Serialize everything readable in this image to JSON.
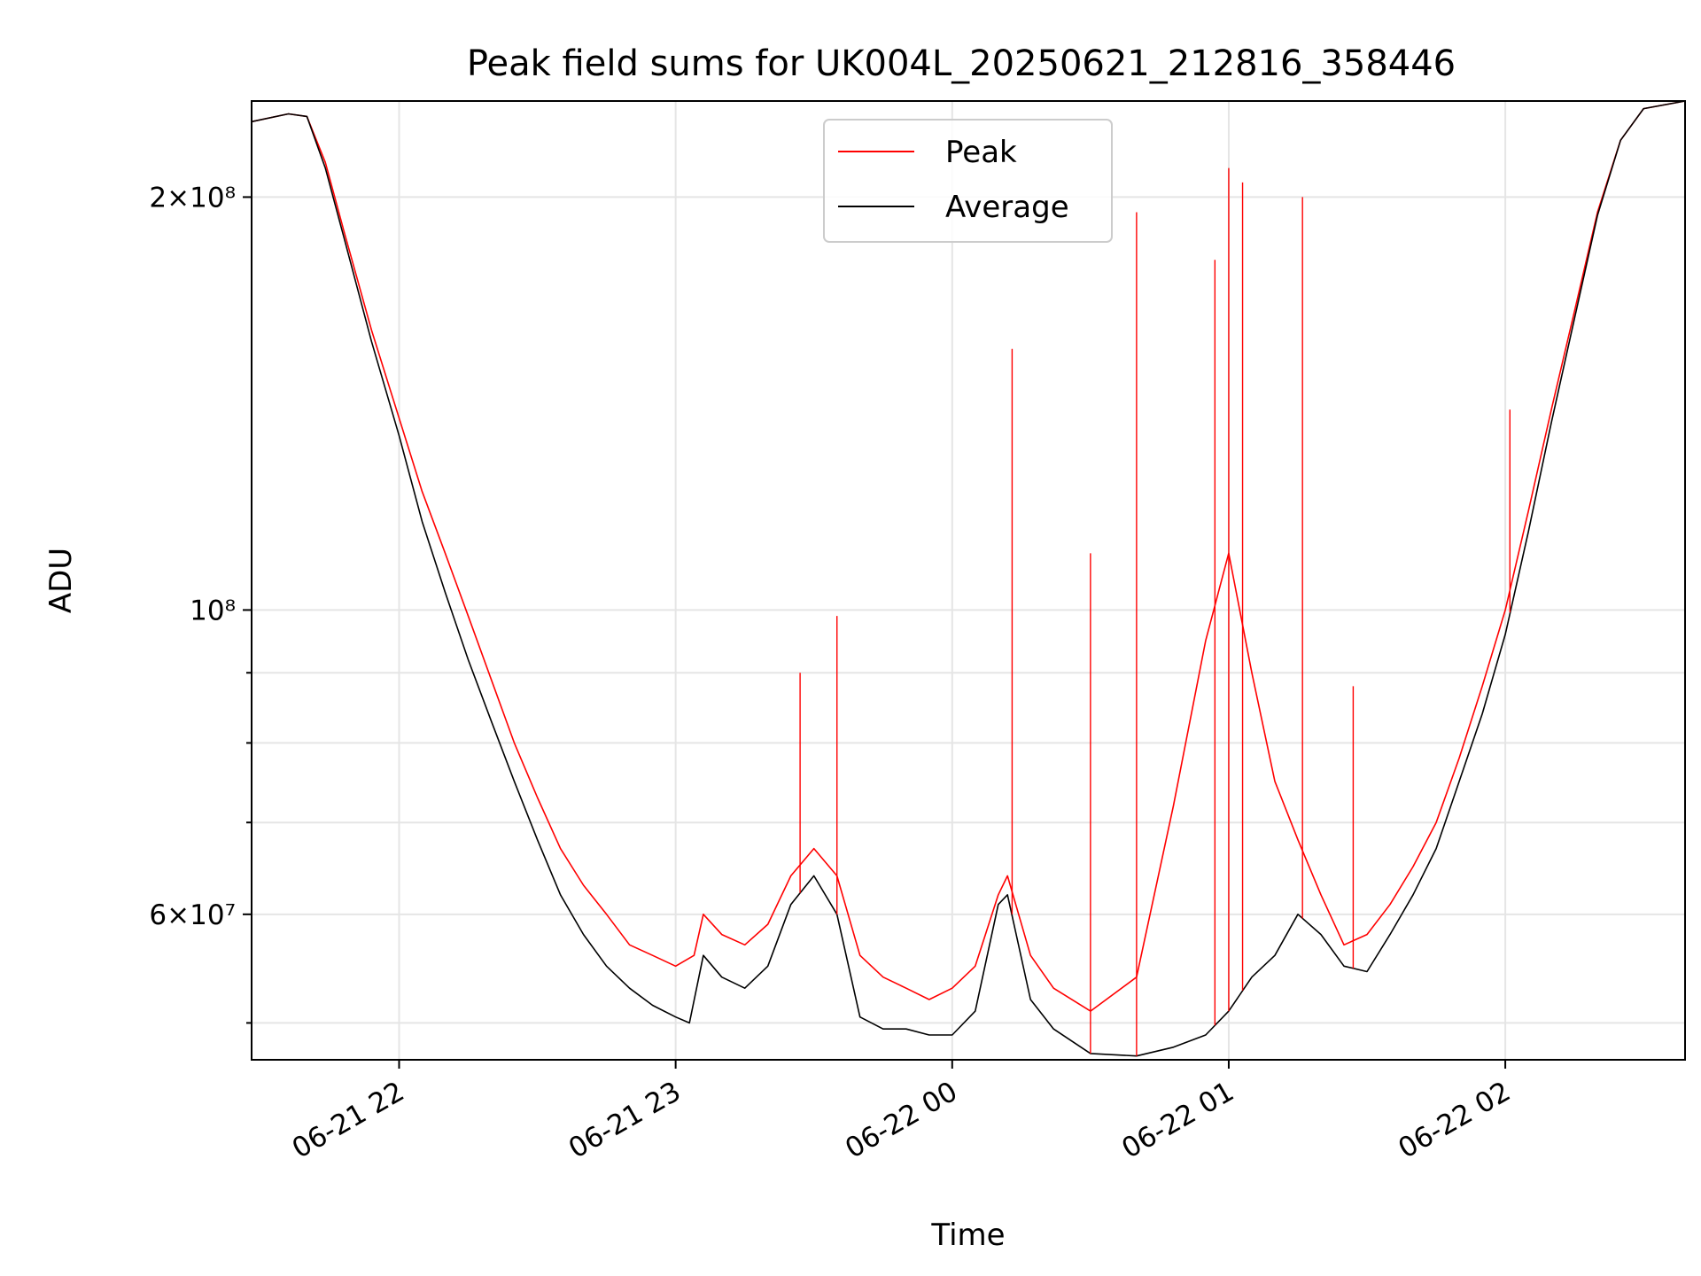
{
  "chart_data": {
    "type": "line",
    "title": "Peak field sums for UK004L_20250621_212816_358446",
    "xlabel": "Time",
    "ylabel": "ADU",
    "yscale": "log",
    "xlim": [
      "2025-06-21 21:28",
      "2025-06-22 02:39"
    ],
    "ylim": [
      47000000,
      235000000
    ],
    "grid": true,
    "legend_position": "top-center",
    "x_ticks": [
      "06-21 22",
      "06-21 23",
      "06-22 00",
      "06-22 01",
      "06-22 02"
    ],
    "y_ticks": [
      "2×10⁸",
      "10⁸",
      "6×10⁷"
    ],
    "series": [
      {
        "name": "Peak",
        "color": "#ff0000",
        "points": [
          [
            "2025-06-21 21:28",
            227000000
          ],
          [
            "2025-06-21 21:36",
            230000000
          ],
          [
            "2025-06-21 21:40",
            229000000
          ],
          [
            "2025-06-21 21:44",
            212000000
          ],
          [
            "2025-06-21 21:48",
            189000000
          ],
          [
            "2025-06-21 21:54",
            160000000
          ],
          [
            "2025-06-21 22:00",
            138000000
          ],
          [
            "2025-06-21 22:05",
            122000000
          ],
          [
            "2025-06-21 22:10",
            110000000
          ],
          [
            "2025-06-21 22:15",
            99000000
          ],
          [
            "2025-06-21 22:20",
            89000000
          ],
          [
            "2025-06-21 22:25",
            80000000
          ],
          [
            "2025-06-21 22:30",
            73000000
          ],
          [
            "2025-06-21 22:35",
            67000000
          ],
          [
            "2025-06-21 22:40",
            63000000
          ],
          [
            "2025-06-21 22:45",
            60000000
          ],
          [
            "2025-06-21 22:50",
            57000000
          ],
          [
            "2025-06-21 22:55",
            56000000
          ],
          [
            "2025-06-21 23:00",
            55000000
          ],
          [
            "2025-06-21 23:04",
            56000000
          ],
          [
            "2025-06-21 23:06",
            60000000
          ],
          [
            "2025-06-21 23:10",
            58000000
          ],
          [
            "2025-06-21 23:15",
            57000000
          ],
          [
            "2025-06-21 23:20",
            59000000
          ],
          [
            "2025-06-21 23:25",
            64000000
          ],
          [
            "2025-06-21 23:30",
            67000000
          ],
          [
            "2025-06-21 23:35",
            64000000
          ],
          [
            "2025-06-21 23:40",
            56000000
          ],
          [
            "2025-06-21 23:45",
            54000000
          ],
          [
            "2025-06-21 23:50",
            53000000
          ],
          [
            "2025-06-21 23:55",
            52000000
          ],
          [
            "2025-06-22 00:00",
            53000000
          ],
          [
            "2025-06-22 00:05",
            55000000
          ],
          [
            "2025-06-22 00:10",
            62000000
          ],
          [
            "2025-06-22 00:12",
            64000000
          ],
          [
            "2025-06-22 00:17",
            56000000
          ],
          [
            "2025-06-22 00:22",
            53000000
          ],
          [
            "2025-06-22 00:30",
            51000000
          ],
          [
            "2025-06-22 00:40",
            54000000
          ],
          [
            "2025-06-22 00:48",
            72000000
          ],
          [
            "2025-06-22 00:55",
            95000000
          ],
          [
            "2025-06-22 01:00",
            110000000
          ],
          [
            "2025-06-22 01:05",
            90000000
          ],
          [
            "2025-06-22 01:10",
            75000000
          ],
          [
            "2025-06-22 01:15",
            68000000
          ],
          [
            "2025-06-22 01:20",
            62000000
          ],
          [
            "2025-06-22 01:25",
            57000000
          ],
          [
            "2025-06-22 01:30",
            58000000
          ],
          [
            "2025-06-22 01:35",
            61000000
          ],
          [
            "2025-06-22 01:40",
            65000000
          ],
          [
            "2025-06-22 01:45",
            70000000
          ],
          [
            "2025-06-22 01:50",
            78000000
          ],
          [
            "2025-06-22 01:55",
            88000000
          ],
          [
            "2025-06-22 02:00",
            100000000
          ],
          [
            "2025-06-22 02:05",
            118000000
          ],
          [
            "2025-06-22 02:10",
            140000000
          ],
          [
            "2025-06-22 02:15",
            165000000
          ],
          [
            "2025-06-22 02:20",
            195000000
          ],
          [
            "2025-06-22 02:25",
            220000000
          ],
          [
            "2025-06-22 02:30",
            232000000
          ],
          [
            "2025-06-22 02:39",
            235000000
          ]
        ]
      },
      {
        "name": "Average",
        "color": "#000000",
        "points": [
          [
            "2025-06-21 21:28",
            227000000
          ],
          [
            "2025-06-21 21:36",
            230000000
          ],
          [
            "2025-06-21 21:40",
            229000000
          ],
          [
            "2025-06-21 21:44",
            210000000
          ],
          [
            "2025-06-21 21:48",
            187000000
          ],
          [
            "2025-06-21 21:54",
            157000000
          ],
          [
            "2025-06-21 22:00",
            134000000
          ],
          [
            "2025-06-21 22:05",
            116000000
          ],
          [
            "2025-06-21 22:10",
            103000000
          ],
          [
            "2025-06-21 22:15",
            92000000
          ],
          [
            "2025-06-21 22:20",
            83000000
          ],
          [
            "2025-06-21 22:25",
            75000000
          ],
          [
            "2025-06-21 22:30",
            68000000
          ],
          [
            "2025-06-21 22:35",
            62000000
          ],
          [
            "2025-06-21 22:40",
            58000000
          ],
          [
            "2025-06-21 22:45",
            55000000
          ],
          [
            "2025-06-21 22:50",
            53000000
          ],
          [
            "2025-06-21 22:55",
            51500000
          ],
          [
            "2025-06-21 23:00",
            50500000
          ],
          [
            "2025-06-21 23:03",
            50000000
          ],
          [
            "2025-06-21 23:06",
            56000000
          ],
          [
            "2025-06-21 23:10",
            54000000
          ],
          [
            "2025-06-21 23:15",
            53000000
          ],
          [
            "2025-06-21 23:20",
            55000000
          ],
          [
            "2025-06-21 23:25",
            61000000
          ],
          [
            "2025-06-21 23:30",
            64000000
          ],
          [
            "2025-06-21 23:35",
            60000000
          ],
          [
            "2025-06-21 23:40",
            50500000
          ],
          [
            "2025-06-21 23:45",
            49500000
          ],
          [
            "2025-06-21 23:50",
            49500000
          ],
          [
            "2025-06-21 23:55",
            49000000
          ],
          [
            "2025-06-22 00:00",
            49000000
          ],
          [
            "2025-06-22 00:05",
            51000000
          ],
          [
            "2025-06-22 00:10",
            61000000
          ],
          [
            "2025-06-22 00:12",
            62000000
          ],
          [
            "2025-06-22 00:17",
            52000000
          ],
          [
            "2025-06-22 00:22",
            49500000
          ],
          [
            "2025-06-22 00:30",
            47500000
          ],
          [
            "2025-06-22 00:40",
            47300000
          ],
          [
            "2025-06-22 00:48",
            48000000
          ],
          [
            "2025-06-22 00:55",
            49000000
          ],
          [
            "2025-06-22 01:00",
            51000000
          ],
          [
            "2025-06-22 01:05",
            54000000
          ],
          [
            "2025-06-22 01:10",
            56000000
          ],
          [
            "2025-06-22 01:15",
            60000000
          ],
          [
            "2025-06-22 01:20",
            58000000
          ],
          [
            "2025-06-22 01:25",
            55000000
          ],
          [
            "2025-06-22 01:30",
            54500000
          ],
          [
            "2025-06-22 01:35",
            58000000
          ],
          [
            "2025-06-22 01:40",
            62000000
          ],
          [
            "2025-06-22 01:45",
            67000000
          ],
          [
            "2025-06-22 01:50",
            75000000
          ],
          [
            "2025-06-22 01:55",
            84000000
          ],
          [
            "2025-06-22 02:00",
            96000000
          ],
          [
            "2025-06-22 02:05",
            114000000
          ],
          [
            "2025-06-22 02:10",
            137000000
          ],
          [
            "2025-06-22 02:15",
            163000000
          ],
          [
            "2025-06-22 02:20",
            194000000
          ],
          [
            "2025-06-22 02:25",
            220000000
          ],
          [
            "2025-06-22 02:30",
            232000000
          ],
          [
            "2025-06-22 02:39",
            235000000
          ]
        ]
      }
    ],
    "peak_spikes": [
      [
        "2025-06-21 23:27",
        90000000
      ],
      [
        "2025-06-21 23:35",
        99000000
      ],
      [
        "2025-06-22 00:13",
        155000000
      ],
      [
        "2025-06-22 00:30",
        110000000
      ],
      [
        "2025-06-22 00:40",
        195000000
      ],
      [
        "2025-06-22 00:57",
        180000000
      ],
      [
        "2025-06-22 01:00",
        210000000
      ],
      [
        "2025-06-22 01:03",
        205000000
      ],
      [
        "2025-06-22 01:16",
        200000000
      ],
      [
        "2025-06-22 01:27",
        88000000
      ],
      [
        "2025-06-22 02:01",
        140000000
      ]
    ]
  }
}
